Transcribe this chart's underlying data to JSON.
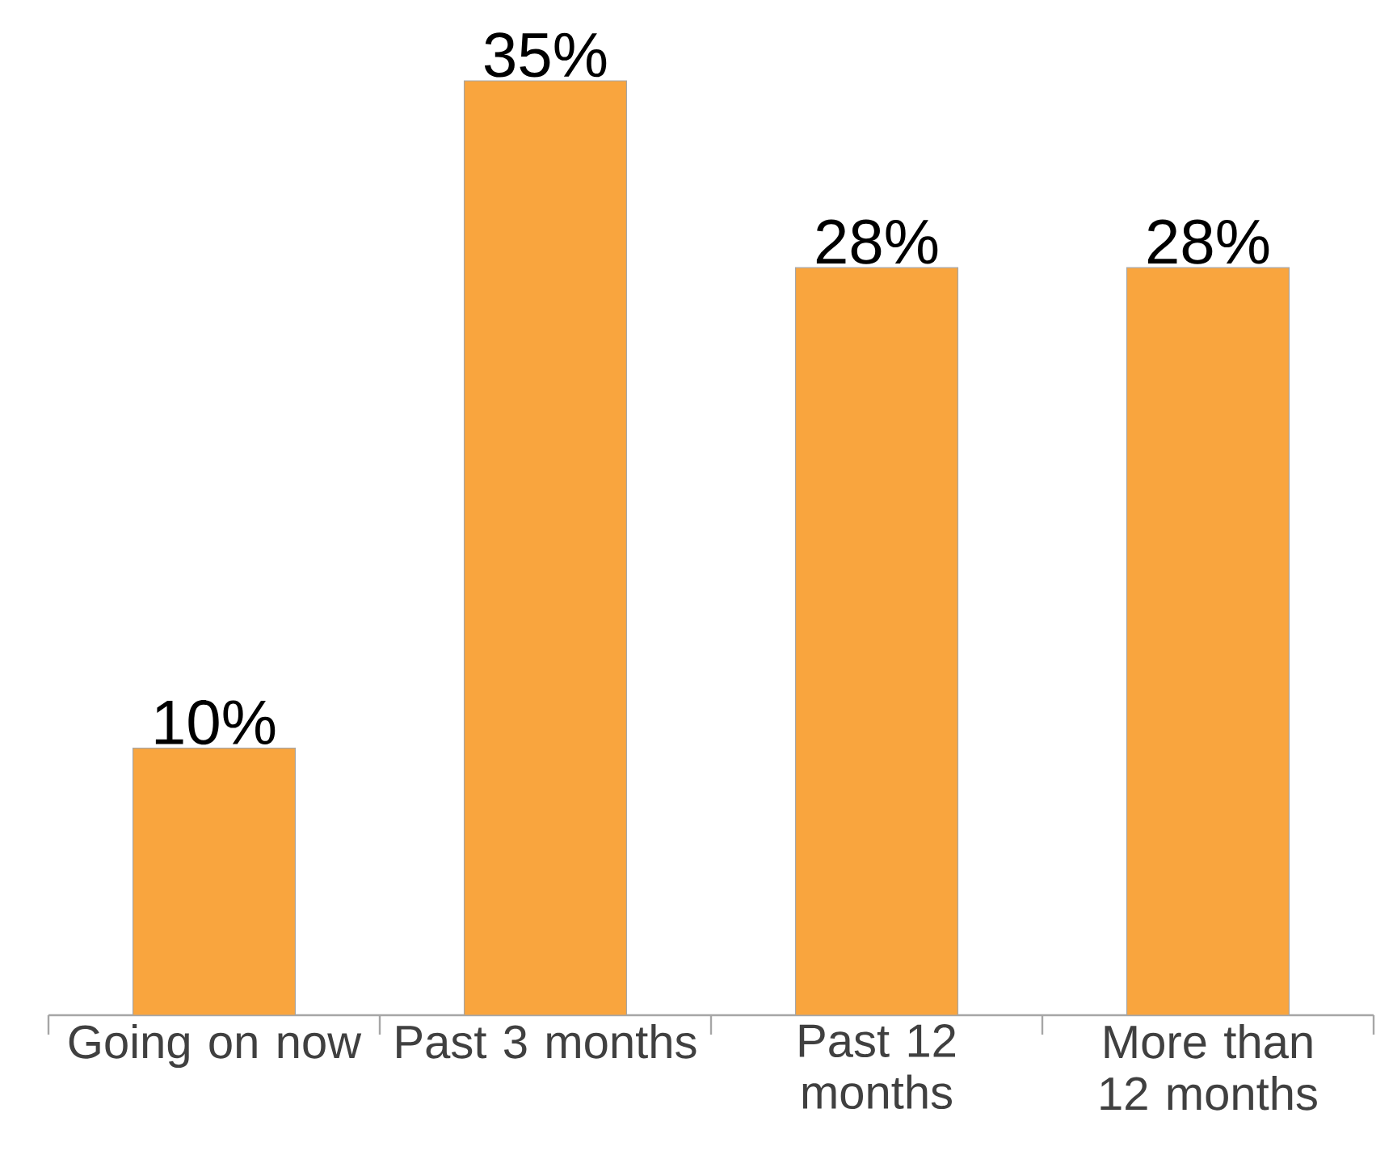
{
  "chart_data": {
    "type": "bar",
    "categories": [
      "Going on now",
      "Past 3 months",
      "Past 12 months",
      "More than 12 months"
    ],
    "values": [
      10,
      35,
      28,
      28
    ],
    "value_labels": [
      "10%",
      "35%",
      "28%",
      "28%"
    ],
    "color": "#f9a53e"
  }
}
